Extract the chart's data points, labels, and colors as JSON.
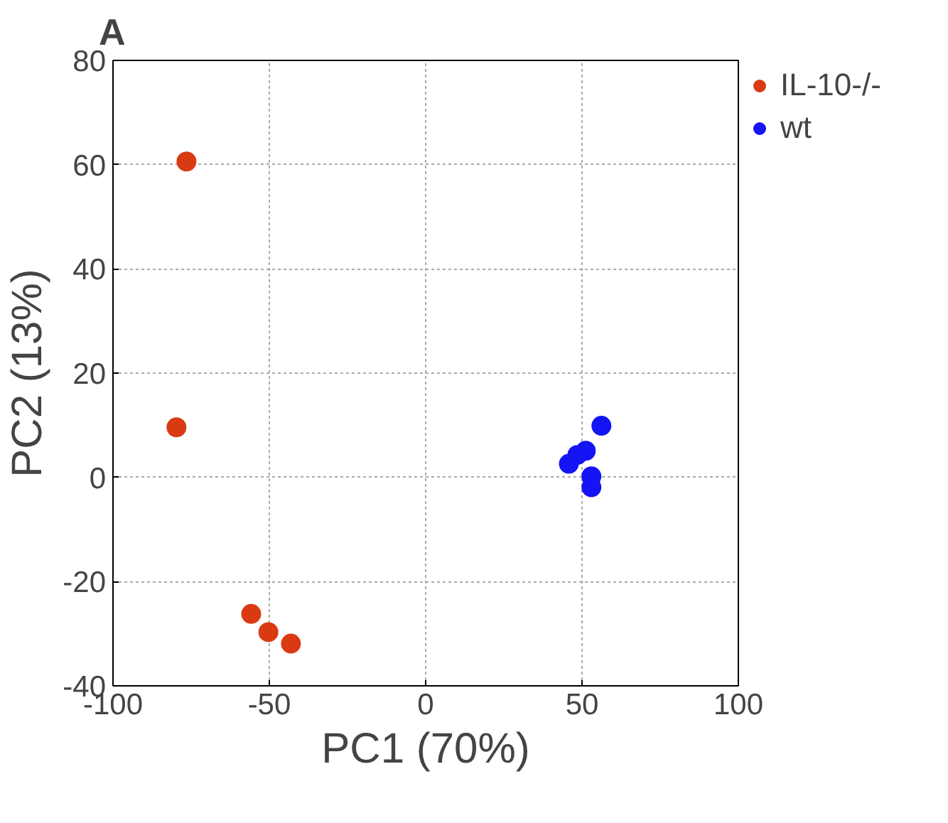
{
  "chart_data": {
    "type": "scatter",
    "annotations": [
      "A"
    ],
    "xlabel": "PC1 (70%)",
    "ylabel": "PC2 (13%)",
    "xlim": [
      -100,
      100
    ],
    "xticks": [
      -100,
      -50,
      0,
      50,
      100
    ],
    "ylim": [
      -40,
      80
    ],
    "yticks": [
      -40,
      -20,
      0,
      20,
      40,
      60,
      80
    ],
    "grid": true,
    "legend": "top right",
    "marker": "circle",
    "series": [
      {
        "name": "IL-10-/-",
        "color": "#d93a12",
        "x": [
          -76.5,
          -79.7,
          -55.8,
          -50.3,
          -43.1
        ],
        "values": [
          60.6,
          9.6,
          -26.2,
          -29.7,
          -31.9
        ]
      },
      {
        "name": "wt",
        "color": "#1414f5",
        "x": [
          45.8,
          48.5,
          51.2,
          56.2,
          53.0,
          53.0
        ],
        "values": [
          2.6,
          4.3,
          5.1,
          9.9,
          0.2,
          -1.9
        ]
      }
    ]
  }
}
